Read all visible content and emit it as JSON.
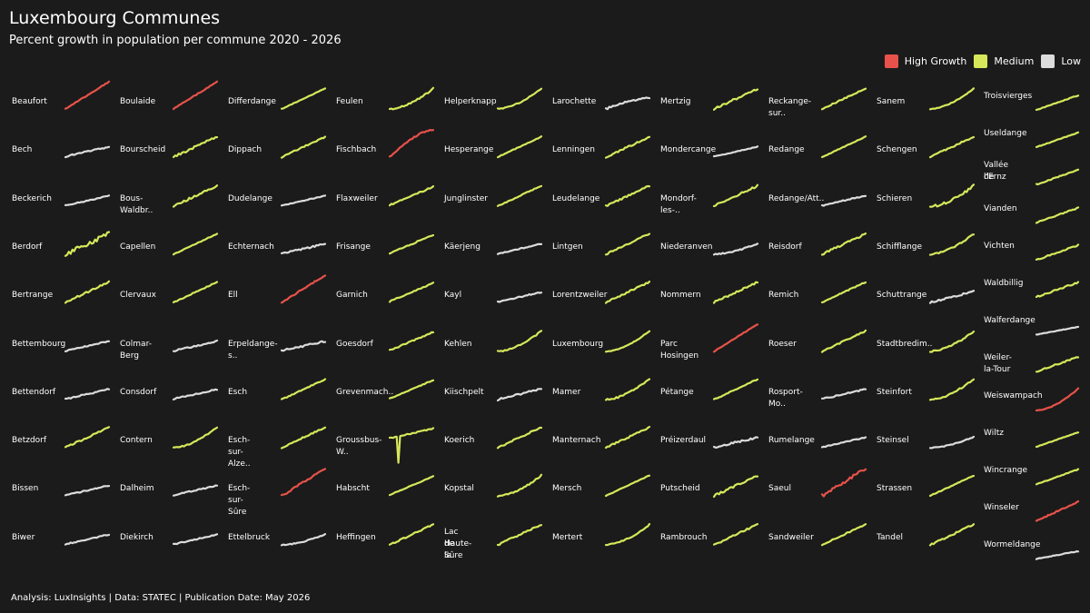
{
  "header": {
    "title": "Luxembourg Communes",
    "subtitle": "Percent growth in population per commune 2020 - 2026"
  },
  "legend": [
    {
      "label": "High Growth",
      "color": "#e8524a"
    },
    {
      "label": "Medium",
      "color": "#d6e85a"
    },
    {
      "label": "Low",
      "color": "#dcdcdc"
    }
  ],
  "caption": {
    "prefix": "Analysis: LuxInsights | Data: STATEC | Publication Date: ",
    "date": "May 2026"
  },
  "colors": {
    "high": "#e8524a",
    "medium": "#d6e85a",
    "low": "#dcdcdc",
    "background": "#1b1b1b"
  },
  "chart_data": {
    "type": "line",
    "title": "Luxembourg Communes",
    "subtitle": "Percent growth in population per commune 2020 - 2026",
    "xrange": [
      2020,
      2026
    ],
    "grid": false,
    "legend_position": "top-right",
    "communes": [
      {
        "name": "Beaufort",
        "growth": "high",
        "shape": "steady",
        "jitter": 0.3
      },
      {
        "name": "Bech",
        "growth": "low",
        "shape": "flat",
        "jitter": 0.5
      },
      {
        "name": "Beckerich",
        "growth": "low",
        "shape": "flat",
        "jitter": 0.3
      },
      {
        "name": "Berdorf",
        "growth": "medium",
        "shape": "steady",
        "jitter": 1.5
      },
      {
        "name": "Bertrange",
        "growth": "medium",
        "shape": "steady",
        "jitter": 0.5
      },
      {
        "name": "Bettembourg",
        "growth": "low",
        "shape": "flat",
        "jitter": 0.3
      },
      {
        "name": "Bettendorf",
        "growth": "low",
        "shape": "flat",
        "jitter": 0.5
      },
      {
        "name": "Betzdorf",
        "growth": "medium",
        "shape": "steady",
        "jitter": 0.5
      },
      {
        "name": "Bissen",
        "growth": "low",
        "shape": "flat",
        "jitter": 0.3
      },
      {
        "name": "Biwer",
        "growth": "low",
        "shape": "flat",
        "jitter": 0.4
      },
      {
        "name": "Boulaide",
        "growth": "high",
        "shape": "steady",
        "jitter": 0.3
      },
      {
        "name": "Bourscheid",
        "growth": "medium",
        "shape": "steady",
        "jitter": 0.8
      },
      {
        "name": "Bous-Waldbr..",
        "growth": "medium",
        "shape": "steady",
        "jitter": 0.6
      },
      {
        "name": "Capellen",
        "growth": "medium",
        "shape": "steady",
        "jitter": 0.2
      },
      {
        "name": "Clervaux",
        "growth": "medium",
        "shape": "steady",
        "jitter": 0.3
      },
      {
        "name": "Colmar-Berg",
        "growth": "low",
        "shape": "flat",
        "jitter": 0.5
      },
      {
        "name": "Consdorf",
        "growth": "low",
        "shape": "flat",
        "jitter": 0.4
      },
      {
        "name": "Contern",
        "growth": "medium",
        "shape": "late",
        "jitter": 0.4
      },
      {
        "name": "Dalheim",
        "growth": "low",
        "shape": "flat",
        "jitter": 0.4
      },
      {
        "name": "Diekirch",
        "growth": "low",
        "shape": "flat",
        "jitter": 0.3
      },
      {
        "name": "Differdange",
        "growth": "medium",
        "shape": "steady",
        "jitter": 0.2
      },
      {
        "name": "Dippach",
        "growth": "medium",
        "shape": "steady",
        "jitter": 0.4
      },
      {
        "name": "Dudelange",
        "growth": "low",
        "shape": "flat",
        "jitter": 0.2
      },
      {
        "name": "Echternach",
        "growth": "low",
        "shape": "flat",
        "jitter": 0.5
      },
      {
        "name": "Ell",
        "growth": "high",
        "shape": "steady",
        "jitter": 0.4
      },
      {
        "name": "Erpeldange-s..",
        "growth": "low",
        "shape": "flat",
        "jitter": 0.6
      },
      {
        "name": "Esch",
        "growth": "medium",
        "shape": "steady",
        "jitter": 0.3
      },
      {
        "name": "Esch-sur-Alze..",
        "growth": "medium",
        "shape": "steady",
        "jitter": 0.4
      },
      {
        "name": "Esch-sur-Sûre",
        "growth": "high",
        "shape": "steady",
        "jitter": 0.6
      },
      {
        "name": "Ettelbruck",
        "growth": "low",
        "shape": "late",
        "jitter": 0.3
      },
      {
        "name": "Feulen",
        "growth": "medium",
        "shape": "late",
        "jitter": 0.4
      },
      {
        "name": "Fischbach",
        "growth": "high",
        "shape": "early",
        "jitter": 0.4
      },
      {
        "name": "Flaxweiler",
        "growth": "medium",
        "shape": "flat",
        "jitter": 0.4
      },
      {
        "name": "Frisange",
        "growth": "medium",
        "shape": "flat",
        "jitter": 0.4
      },
      {
        "name": "Garnich",
        "growth": "medium",
        "shape": "flat",
        "jitter": 0.3
      },
      {
        "name": "Goesdorf",
        "growth": "medium",
        "shape": "flat",
        "jitter": 0.4
      },
      {
        "name": "Grevenmach..",
        "growth": "medium",
        "shape": "flat",
        "jitter": 0.2
      },
      {
        "name": "Groussbus-W..",
        "growth": "medium",
        "shape": "dip",
        "jitter": 0.5
      },
      {
        "name": "Habscht",
        "growth": "medium",
        "shape": "flat",
        "jitter": 0.2
      },
      {
        "name": "Heffingen",
        "growth": "medium",
        "shape": "steady",
        "jitter": 0.4
      },
      {
        "name": "Helperknapp",
        "growth": "medium",
        "shape": "late",
        "jitter": 0.4
      },
      {
        "name": "Hesperange",
        "growth": "medium",
        "shape": "steady",
        "jitter": 0.2
      },
      {
        "name": "Junglinster",
        "growth": "medium",
        "shape": "steady",
        "jitter": 0.3
      },
      {
        "name": "Käerjeng",
        "growth": "low",
        "shape": "flat",
        "jitter": 0.3
      },
      {
        "name": "Kayl",
        "growth": "low",
        "shape": "flat",
        "jitter": 0.4
      },
      {
        "name": "Kehlen",
        "growth": "medium",
        "shape": "late",
        "jitter": 0.4
      },
      {
        "name": "Kiischpelt",
        "growth": "low",
        "shape": "steady",
        "jitter": 0.6
      },
      {
        "name": "Koerich",
        "growth": "medium",
        "shape": "steady",
        "jitter": 0.5
      },
      {
        "name": "Kopstal",
        "growth": "medium",
        "shape": "late",
        "jitter": 0.4
      },
      {
        "name": "Lac de la Haute-Sûre",
        "growth": "medium",
        "shape": "steady",
        "jitter": 0.5
      },
      {
        "name": "Larochette",
        "growth": "low",
        "shape": "early",
        "jitter": 0.5
      },
      {
        "name": "Lenningen",
        "growth": "medium",
        "shape": "steady",
        "jitter": 0.6
      },
      {
        "name": "Leudelange",
        "growth": "medium",
        "shape": "steady",
        "jitter": 0.5
      },
      {
        "name": "Lintgen",
        "growth": "medium",
        "shape": "steady",
        "jitter": 0.5
      },
      {
        "name": "Lorentzweiler",
        "growth": "medium",
        "shape": "steady",
        "jitter": 0.5
      },
      {
        "name": "Luxembourg",
        "growth": "medium",
        "shape": "late",
        "jitter": 0.2
      },
      {
        "name": "Mamer",
        "growth": "medium",
        "shape": "late",
        "jitter": 0.5
      },
      {
        "name": "Manternach",
        "growth": "medium",
        "shape": "steady",
        "jitter": 0.5
      },
      {
        "name": "Mersch",
        "growth": "medium",
        "shape": "steady",
        "jitter": 0.2
      },
      {
        "name": "Mertert",
        "growth": "medium",
        "shape": "late",
        "jitter": 0.4
      },
      {
        "name": "Mertzig",
        "growth": "medium",
        "shape": "steady",
        "jitter": 0.6
      },
      {
        "name": "Mondercange",
        "growth": "low",
        "shape": "flat",
        "jitter": 0.2
      },
      {
        "name": "Mondorf-les-..",
        "growth": "medium",
        "shape": "steady",
        "jitter": 0.6
      },
      {
        "name": "Niederanven",
        "growth": "low",
        "shape": "late",
        "jitter": 0.4
      },
      {
        "name": "Nommern",
        "growth": "medium",
        "shape": "steady",
        "jitter": 0.6
      },
      {
        "name": "Parc Hosingen",
        "growth": "high",
        "shape": "steady",
        "jitter": 0.2
      },
      {
        "name": "Pétange",
        "growth": "medium",
        "shape": "steady",
        "jitter": 0.3
      },
      {
        "name": "Préizerdaul",
        "growth": "low",
        "shape": "flat",
        "jitter": 0.6
      },
      {
        "name": "Putscheid",
        "growth": "medium",
        "shape": "steady",
        "jitter": 0.6
      },
      {
        "name": "Rambrouch",
        "growth": "medium",
        "shape": "steady",
        "jitter": 0.5
      },
      {
        "name": "Reckange-sur..",
        "growth": "medium",
        "shape": "steady",
        "jitter": 0.4
      },
      {
        "name": "Redange",
        "growth": "medium",
        "shape": "steady",
        "jitter": 0.2
      },
      {
        "name": "Redange/Att..",
        "growth": "low",
        "shape": "flat",
        "jitter": 0.4
      },
      {
        "name": "Reisdorf",
        "growth": "medium",
        "shape": "steady",
        "jitter": 0.6
      },
      {
        "name": "Remich",
        "growth": "medium",
        "shape": "steady",
        "jitter": 0.3
      },
      {
        "name": "Roeser",
        "growth": "medium",
        "shape": "steady",
        "jitter": 0.4
      },
      {
        "name": "Rosport-Mo..",
        "growth": "low",
        "shape": "flat",
        "jitter": 0.4
      },
      {
        "name": "Rumelange",
        "growth": "low",
        "shape": "flat",
        "jitter": 0.3
      },
      {
        "name": "Saeul",
        "growth": "high",
        "shape": "steady",
        "jitter": 1.0
      },
      {
        "name": "Sandweiler",
        "growth": "medium",
        "shape": "steady",
        "jitter": 0.4
      },
      {
        "name": "Sanem",
        "growth": "medium",
        "shape": "late",
        "jitter": 0.2
      },
      {
        "name": "Schengen",
        "growth": "medium",
        "shape": "steady",
        "jitter": 0.5
      },
      {
        "name": "Schieren",
        "growth": "medium",
        "shape": "late",
        "jitter": 0.8
      },
      {
        "name": "Schifflange",
        "growth": "medium",
        "shape": "late",
        "jitter": 0.4
      },
      {
        "name": "Schuttrange",
        "growth": "low",
        "shape": "steady",
        "jitter": 0.5
      },
      {
        "name": "Stadtbredim..",
        "growth": "medium",
        "shape": "late",
        "jitter": 0.5
      },
      {
        "name": "Steinfort",
        "growth": "medium",
        "shape": "late",
        "jitter": 0.5
      },
      {
        "name": "Steinsel",
        "growth": "low",
        "shape": "late",
        "jitter": 0.3
      },
      {
        "name": "Strassen",
        "growth": "medium",
        "shape": "steady",
        "jitter": 0.3
      },
      {
        "name": "Tandel",
        "growth": "medium",
        "shape": "steady",
        "jitter": 0.5
      },
      {
        "name": "Troisvierges",
        "growth": "medium",
        "shape": "flat",
        "jitter": 0.3
      },
      {
        "name": "Useldange",
        "growth": "medium",
        "shape": "flat",
        "jitter": 0.3
      },
      {
        "name": "Vallée de l'Ernz",
        "growth": "medium",
        "shape": "flat",
        "jitter": 0.4
      },
      {
        "name": "Vianden",
        "growth": "medium",
        "shape": "flat",
        "jitter": 0.4
      },
      {
        "name": "Vichten",
        "growth": "medium",
        "shape": "flat",
        "jitter": 0.5
      },
      {
        "name": "Waldbillig",
        "growth": "medium",
        "shape": "flat",
        "jitter": 0.6
      },
      {
        "name": "Walferdange",
        "growth": "low",
        "shape": "flat",
        "jitter": 0.2
      },
      {
        "name": "Weiler-la-Tour",
        "growth": "medium",
        "shape": "flat",
        "jitter": 0.5
      },
      {
        "name": "Weiswampach",
        "growth": "high",
        "shape": "late",
        "jitter": 0.3
      },
      {
        "name": "Wiltz",
        "growth": "medium",
        "shape": "flat",
        "jitter": 0.2
      },
      {
        "name": "Wincrange",
        "growth": "medium",
        "shape": "flat",
        "jitter": 0.3
      },
      {
        "name": "Winseler",
        "growth": "high",
        "shape": "flat",
        "jitter": 0.5
      },
      {
        "name": "Wormeldange",
        "growth": "low",
        "shape": "flat",
        "jitter": 0.3
      }
    ]
  }
}
